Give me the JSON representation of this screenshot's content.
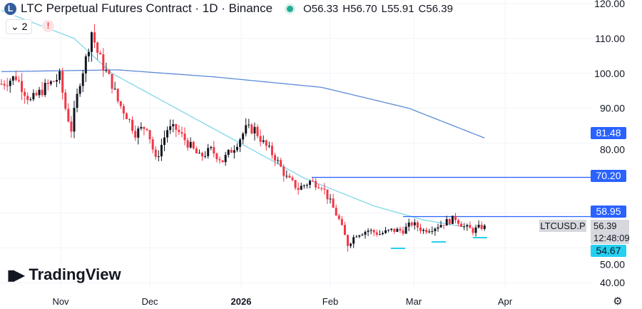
{
  "header": {
    "symbol": "LTC Perpetual Futures Contract · 1D · Binance",
    "logo": "L",
    "open": "O56.33",
    "high": "H56.70",
    "low": "L55.91",
    "close": "C56.39",
    "indicator_count": "2",
    "warning": "!"
  },
  "brand": "TradingView",
  "price_labels": {
    "ma200": "81.48",
    "line1": "70.20",
    "line2": "58.95",
    "symbol": "LTCUSD.P",
    "last": "56.39",
    "countdown": "12:48:09",
    "low": "54.67"
  },
  "colors": {
    "up": "#131722",
    "down": "#f23645",
    "ma200": "#5b8bd8",
    "ma50": "#7fd8e8",
    "accent": "#2962ff",
    "cyan": "#24d0f0"
  },
  "chart_data": {
    "type": "candlestick",
    "y_ticks": [
      "120.00",
      "110.00",
      "100.00",
      "90.00",
      "80.00",
      "50.00",
      "40.00"
    ],
    "ylim": [
      40,
      121
    ],
    "x_ticks": [
      "Nov",
      "Dec",
      "2026",
      "Feb",
      "Mar",
      "Apr"
    ],
    "start": "Oct 10",
    "days": 167,
    "close_keypoints": [
      [
        0,
        97
      ],
      [
        5,
        99
      ],
      [
        10,
        92
      ],
      [
        15,
        96
      ],
      [
        20,
        99
      ],
      [
        22,
        90
      ],
      [
        24,
        84
      ],
      [
        27,
        98
      ],
      [
        29,
        104
      ],
      [
        31,
        112
      ],
      [
        33,
        106
      ],
      [
        35,
        102
      ],
      [
        38,
        97
      ],
      [
        40,
        92
      ],
      [
        43,
        88
      ],
      [
        46,
        83
      ],
      [
        50,
        85
      ],
      [
        53,
        75
      ],
      [
        57,
        84
      ],
      [
        60,
        84
      ],
      [
        64,
        80
      ],
      [
        68,
        76
      ],
      [
        72,
        78
      ],
      [
        76,
        75
      ],
      [
        80,
        79
      ],
      [
        84,
        84
      ],
      [
        87,
        84
      ],
      [
        90,
        80
      ],
      [
        94,
        76
      ],
      [
        98,
        70
      ],
      [
        102,
        67
      ],
      [
        106,
        69
      ],
      [
        110,
        68
      ],
      [
        113,
        63
      ],
      [
        116,
        58
      ],
      [
        119,
        51
      ],
      [
        122,
        54
      ],
      [
        126,
        55
      ],
      [
        130,
        54
      ],
      [
        134,
        55
      ],
      [
        138,
        55
      ],
      [
        141,
        57
      ],
      [
        145,
        55
      ],
      [
        149,
        56
      ],
      [
        153,
        57.5
      ],
      [
        156,
        58.5
      ],
      [
        159,
        56
      ],
      [
        162,
        55
      ],
      [
        166,
        56.39
      ]
    ],
    "ma50_keypoints": [
      [
        0,
        118
      ],
      [
        25,
        110
      ],
      [
        38,
        100
      ],
      [
        60,
        90
      ],
      [
        82,
        80
      ],
      [
        104,
        70
      ],
      [
        128,
        62
      ],
      [
        145,
        58
      ],
      [
        159,
        56
      ]
    ],
    "ma200_keypoints": [
      [
        0,
        100.5
      ],
      [
        40,
        101
      ],
      [
        73,
        99
      ],
      [
        110,
        96
      ],
      [
        140,
        90
      ],
      [
        166,
        81.48
      ]
    ],
    "horizontal_lines": [
      70.2,
      58.95
    ]
  }
}
